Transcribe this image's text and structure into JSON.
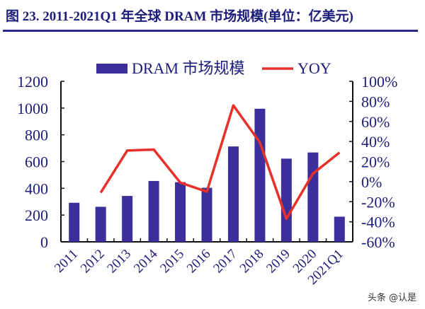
{
  "title": "图 23. 2011-2021Q1 年全球 DRAM 市场规模(单位：亿美元)",
  "watermark": "头条 @认是",
  "chart_data": {
    "type": "bar+line",
    "title": "图 23. 2011-2021Q1 年全球 DRAM 市场规模(单位：亿美元)",
    "categories": [
      "2011",
      "2012",
      "2013",
      "2014",
      "2015",
      "2016",
      "2017",
      "2018",
      "2019",
      "2020",
      "2021Q1"
    ],
    "series": [
      {
        "name": "DRAM 市场规模",
        "type": "bar",
        "axis": "left",
        "color": "#3b2f9b",
        "values": [
          292,
          262,
          343,
          455,
          446,
          404,
          713,
          995,
          622,
          668,
          188
        ]
      },
      {
        "name": "YOY",
        "type": "line",
        "axis": "right",
        "color": "#e8302a",
        "values": [
          null,
          -11,
          31,
          32,
          -1,
          -10,
          76,
          39,
          -37,
          8,
          29
        ]
      }
    ],
    "left_axis": {
      "ylim": [
        0,
        1200
      ],
      "ticks": [
        "0",
        "200",
        "400",
        "600",
        "800",
        "1000",
        "1200"
      ]
    },
    "right_axis": {
      "ylim": [
        -60,
        100
      ],
      "ticks": [
        "-60%",
        "-40%",
        "-20%",
        "0%",
        "20%",
        "40%",
        "60%",
        "80%",
        "100%"
      ]
    },
    "legend": "top",
    "grid": false
  }
}
